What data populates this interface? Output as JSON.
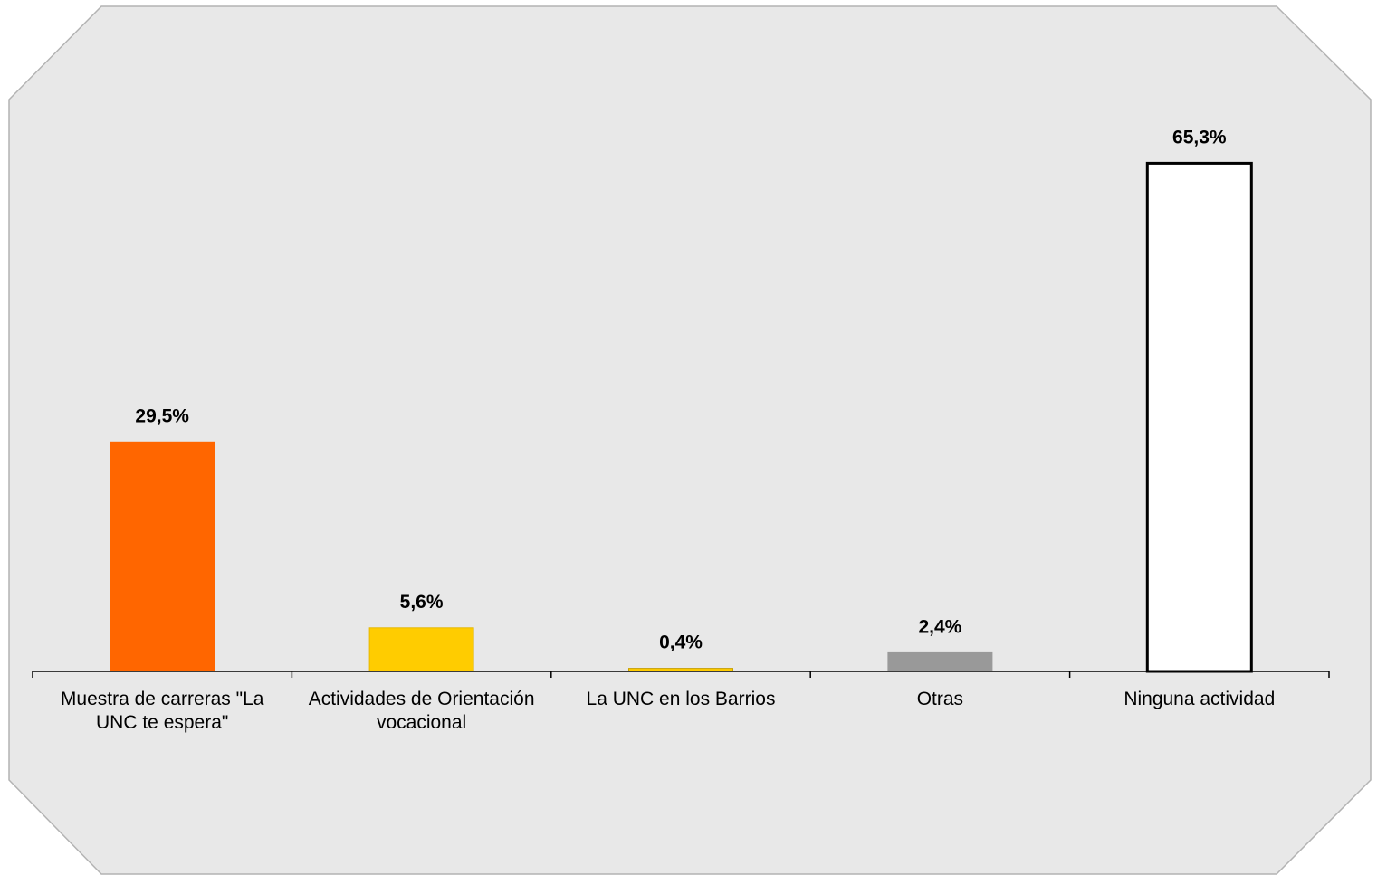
{
  "chart_data": {
    "type": "bar",
    "title": "",
    "xlabel": "",
    "ylabel": "",
    "ylim": [
      0,
      70
    ],
    "grid": false,
    "legend": "none",
    "categories": [
      [
        "Muestra de carreras \"La",
        "UNC te espera\""
      ],
      [
        "Actividades de Orientación",
        "vocacional"
      ],
      [
        "La UNC en los Barrios"
      ],
      [
        "Otras"
      ],
      [
        "Ninguna actividad"
      ]
    ],
    "values": [
      29.5,
      5.6,
      0.4,
      2.4,
      65.3
    ],
    "value_labels": [
      "29,5%",
      "5,6%",
      "0,4%",
      "2,4%",
      "65,3%"
    ],
    "bar_fills": [
      "#ff6600",
      "#ffcc00",
      "#ffcc00",
      "#999999",
      "#ffffff"
    ],
    "bar_strokes": [
      "#ff6600",
      "#e6b800",
      "#c8a000",
      "#999999",
      "#000000"
    ],
    "background_color": "#e8e8e8",
    "axis_color": "#000000"
  }
}
